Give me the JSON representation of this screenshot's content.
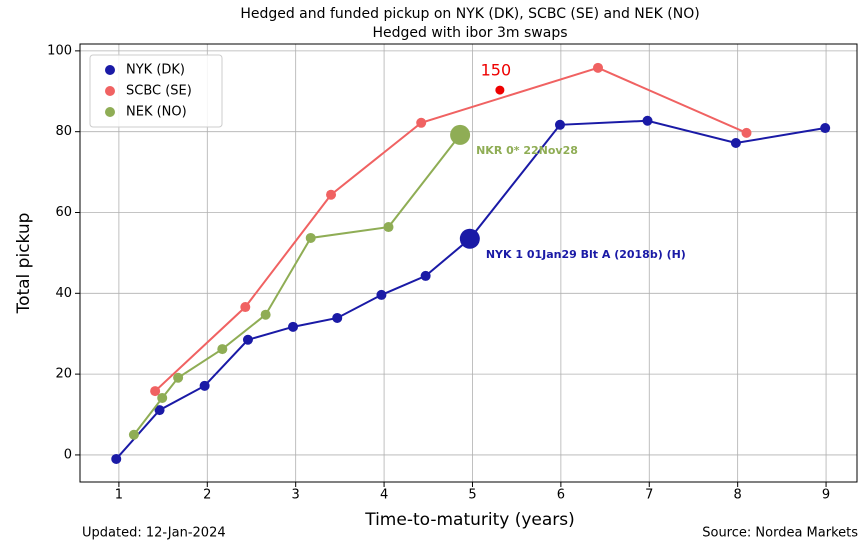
{
  "chart_data": {
    "type": "line",
    "title": "Hedged and funded pickup on NYK (DK), SCBC (SE) and NEK (NO)",
    "subtitle": "Hedged with ibor 3m swaps",
    "xlabel": "Time-to-maturity (years)",
    "ylabel": "Total pickup",
    "xlim": [
      0.56,
      9.35
    ],
    "ylim": [
      -6.7,
      101.7
    ],
    "xticks": [
      1,
      2,
      3,
      4,
      5,
      6,
      7,
      8,
      9
    ],
    "yticks": [
      0,
      20,
      40,
      60,
      80,
      100
    ],
    "grid": true,
    "legend": "upper left",
    "series": [
      {
        "name": "NYK (DK)",
        "color": "#1a1aa6",
        "x": [
          0.97,
          1.46,
          1.97,
          2.46,
          2.97,
          3.47,
          3.97,
          4.47,
          4.97,
          5.99,
          6.98,
          7.98,
          8.99
        ],
        "values": [
          -1,
          11.1,
          17.1,
          28.5,
          31.7,
          33.9,
          39.6,
          44.3,
          53.5,
          81.7,
          82.7,
          77.2,
          80.9
        ],
        "highlight_index": 8,
        "annotation": "NYK 1 01Jan29 Blt A (2018b) (H)"
      },
      {
        "name": "SCBC (SE)",
        "color": "#f06262",
        "x": [
          1.41,
          2.43,
          3.4,
          4.42,
          6.42,
          8.1
        ],
        "values": [
          15.8,
          36.6,
          64.4,
          82.2,
          95.8,
          79.7
        ]
      },
      {
        "name": "NEK (NO)",
        "color": "#8fad55",
        "x": [
          1.17,
          1.49,
          1.67,
          2.17,
          2.66,
          3.17,
          4.05,
          4.86
        ],
        "values": [
          5.0,
          14.1,
          19.1,
          26.2,
          34.7,
          53.7,
          56.4,
          79.2
        ],
        "highlight_index": 7,
        "annotation": "NKR 0* 22Nov28"
      }
    ],
    "marker_note": {
      "label": "150",
      "x": 5.31,
      "y": 90.3,
      "color": "#ee0000"
    },
    "footer_left": "Updated: 12-Jan-2024",
    "footer_right": "Source: Nordea Markets"
  }
}
